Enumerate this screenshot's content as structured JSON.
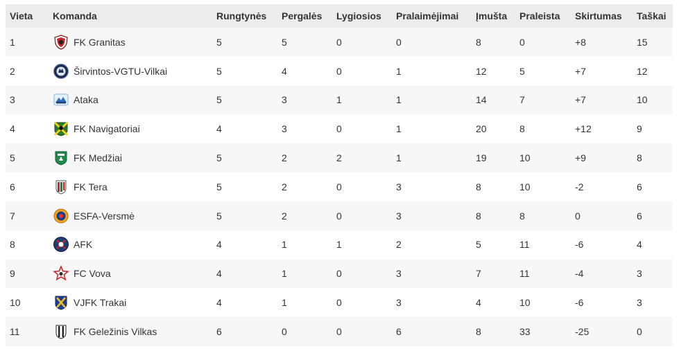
{
  "headers": {
    "place": "Vieta",
    "team": "Komanda",
    "played": "Rungtynės",
    "wins": "Pergalės",
    "draws": "Lygiosios",
    "losses": "Pralaimėjimai",
    "scored": "Įmušta",
    "conceded": "Praleista",
    "diff": "Skirtumas",
    "points": "Taškai"
  },
  "rows": [
    {
      "place": "1",
      "team": "FK Granitas",
      "logo": "granitas-crest-icon",
      "played": "5",
      "wins": "5",
      "draws": "0",
      "losses": "0",
      "scored": "8",
      "conceded": "0",
      "diff": "+8",
      "points": "15"
    },
    {
      "place": "2",
      "team": "Širvintos-VGTU-Vilkai",
      "logo": "wolf-crest-icon",
      "played": "5",
      "wins": "4",
      "draws": "0",
      "losses": "1",
      "scored": "12",
      "conceded": "5",
      "diff": "+7",
      "points": "12"
    },
    {
      "place": "3",
      "team": "Ataka",
      "logo": "ataka-crest-icon",
      "played": "5",
      "wins": "3",
      "draws": "1",
      "losses": "1",
      "scored": "14",
      "conceded": "7",
      "diff": "+7",
      "points": "10"
    },
    {
      "place": "4",
      "team": "FK Navigatoriai",
      "logo": "navigatoriai-crest-icon",
      "played": "4",
      "wins": "3",
      "draws": "0",
      "losses": "1",
      "scored": "20",
      "conceded": "8",
      "diff": "+12",
      "points": "9"
    },
    {
      "place": "5",
      "team": "FK Medžiai",
      "logo": "medziai-crest-icon",
      "played": "5",
      "wins": "2",
      "draws": "2",
      "losses": "1",
      "scored": "19",
      "conceded": "10",
      "diff": "+9",
      "points": "8"
    },
    {
      "place": "6",
      "team": "FK Tera",
      "logo": "tera-crest-icon",
      "played": "5",
      "wins": "2",
      "draws": "0",
      "losses": "3",
      "scored": "8",
      "conceded": "10",
      "diff": "-2",
      "points": "6"
    },
    {
      "place": "7",
      "team": "ESFA-Versmė",
      "logo": "esfa-crest-icon",
      "played": "5",
      "wins": "2",
      "draws": "0",
      "losses": "3",
      "scored": "8",
      "conceded": "8",
      "diff": "0",
      "points": "6"
    },
    {
      "place": "8",
      "team": "AFK",
      "logo": "afk-crest-icon",
      "played": "4",
      "wins": "1",
      "draws": "1",
      "losses": "2",
      "scored": "5",
      "conceded": "11",
      "diff": "-6",
      "points": "4"
    },
    {
      "place": "9",
      "team": "FC Vova",
      "logo": "vova-star-crest-icon",
      "played": "4",
      "wins": "1",
      "draws": "0",
      "losses": "3",
      "scored": "7",
      "conceded": "11",
      "diff": "-4",
      "points": "3"
    },
    {
      "place": "10",
      "team": "VJFK Trakai",
      "logo": "trakai-crest-icon",
      "played": "4",
      "wins": "1",
      "draws": "0",
      "losses": "3",
      "scored": "4",
      "conceded": "10",
      "diff": "-6",
      "points": "3"
    },
    {
      "place": "11",
      "team": "FK Geležinis Vilkas",
      "logo": "gelezinis-vilkas-crest-icon",
      "played": "6",
      "wins": "0",
      "draws": "0",
      "losses": "6",
      "scored": "8",
      "conceded": "33",
      "diff": "-25",
      "points": "0"
    }
  ]
}
